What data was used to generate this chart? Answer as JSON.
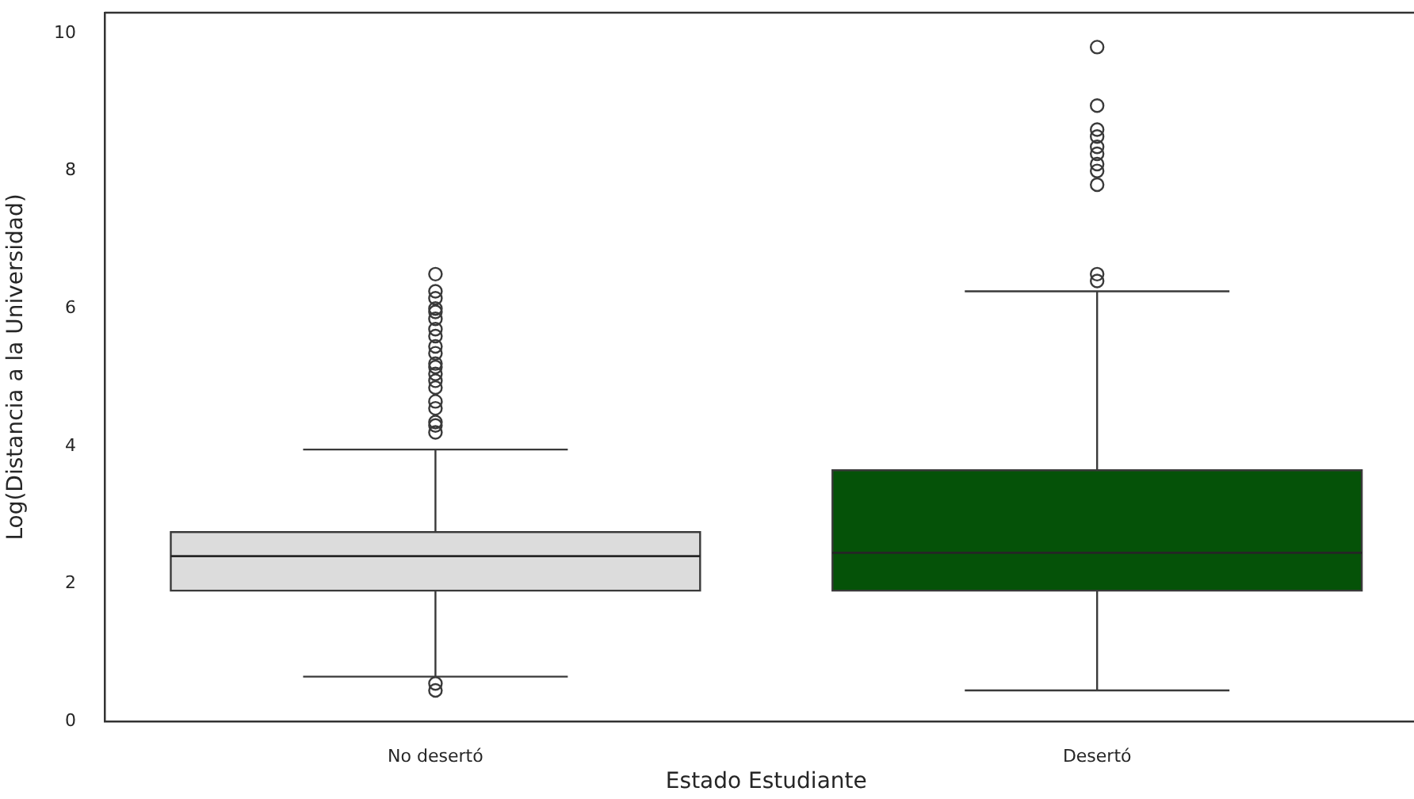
{
  "chart_data": {
    "type": "box",
    "xlabel": "Estado Estudiante",
    "ylabel": "Log(Distancia a la Universidad)",
    "categories": [
      "No desertó",
      "Desertó"
    ],
    "colors": [
      "#dcdcdc",
      "#055208"
    ],
    "boxes": [
      {
        "low": 0.65,
        "q1": 1.9,
        "median": 2.4,
        "q3": 2.75,
        "high": 3.95,
        "outliers": [
          0.55,
          0.45,
          4.2,
          4.3,
          4.35,
          4.55,
          4.65,
          4.85,
          4.95,
          5.05,
          5.15,
          5.2,
          5.35,
          5.45,
          5.6,
          5.7,
          5.85,
          5.95,
          6.0,
          6.15,
          6.25,
          6.5
        ]
      },
      {
        "low": 0.45,
        "q1": 1.9,
        "median": 2.45,
        "q3": 3.65,
        "high": 6.25,
        "outliers": [
          6.4,
          6.5,
          7.8,
          8.0,
          8.1,
          8.25,
          8.35,
          8.5,
          8.6,
          8.95,
          9.8
        ]
      }
    ],
    "ylim": [
      0,
      10.3
    ],
    "yticks": [
      0,
      2,
      4,
      6,
      8,
      10
    ]
  }
}
